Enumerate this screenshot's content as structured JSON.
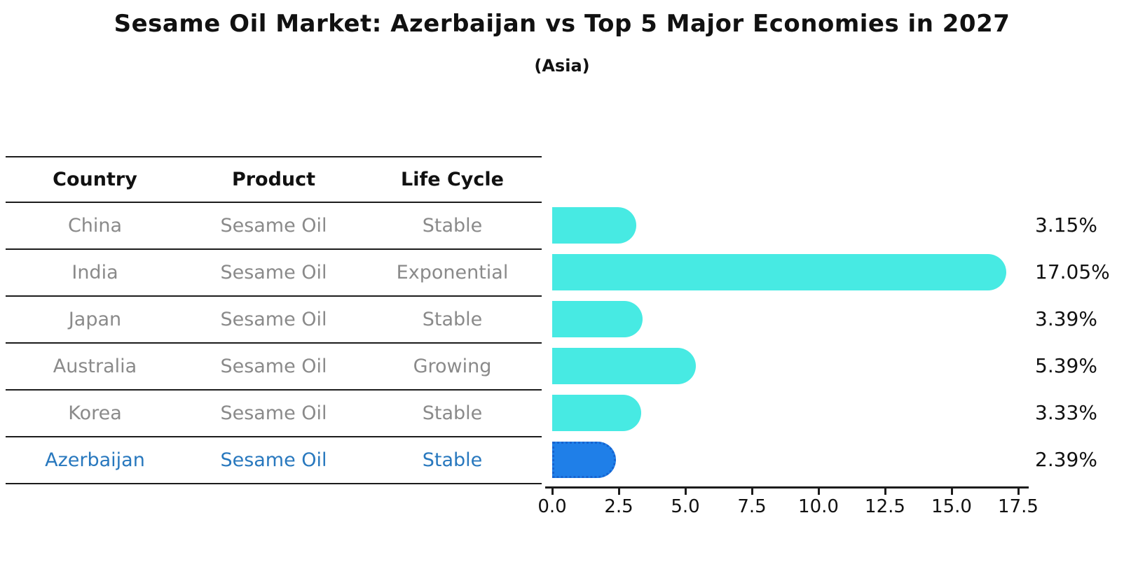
{
  "chart_data": {
    "type": "bar",
    "orientation": "horizontal",
    "title": "Sesame Oil Market: Azerbaijan vs Top 5 Major Economies in 2027",
    "subtitle": "(Asia)",
    "categories": [
      "China",
      "India",
      "Japan",
      "Australia",
      "Korea",
      "Azerbaijan"
    ],
    "values": [
      3.15,
      17.05,
      3.39,
      5.39,
      3.33,
      2.39
    ],
    "value_labels": [
      "3.15%",
      "17.05%",
      "3.39%",
      "5.39%",
      "3.33%",
      "2.39%"
    ],
    "xlabel": "",
    "ylabel": "",
    "xlim": [
      0,
      17.5
    ],
    "xticks": [
      0.0,
      2.5,
      5.0,
      7.5,
      10.0,
      12.5,
      15.0,
      17.5
    ],
    "xtick_labels": [
      "0.0",
      "2.5",
      "5.0",
      "7.5",
      "10.0",
      "12.5",
      "15.0",
      "17.5"
    ],
    "grid": false,
    "legend": null,
    "highlight_index": 5,
    "bar_color": "#47eae3",
    "highlight_bar_color": "#1f7fe8",
    "highlight_bar_border_color": "#1663cf"
  },
  "table": {
    "headers": [
      "Country",
      "Product",
      "Life Cycle"
    ],
    "rows": [
      {
        "country": "China",
        "product": "Sesame Oil",
        "life_cycle": "Stable",
        "highlight": false
      },
      {
        "country": "India",
        "product": "Sesame Oil",
        "life_cycle": "Exponential",
        "highlight": false
      },
      {
        "country": "Japan",
        "product": "Sesame Oil",
        "life_cycle": "Stable",
        "highlight": false
      },
      {
        "country": "Australia",
        "product": "Sesame Oil",
        "life_cycle": "Growing",
        "highlight": false
      },
      {
        "country": "Korea",
        "product": "Sesame Oil",
        "life_cycle": "Stable",
        "highlight": false
      },
      {
        "country": "Azerbaijan",
        "product": "Sesame Oil",
        "life_cycle": "Stable",
        "highlight": true
      }
    ],
    "row_text_color": "#8a8a8a",
    "highlight_text_color": "#2878be"
  }
}
